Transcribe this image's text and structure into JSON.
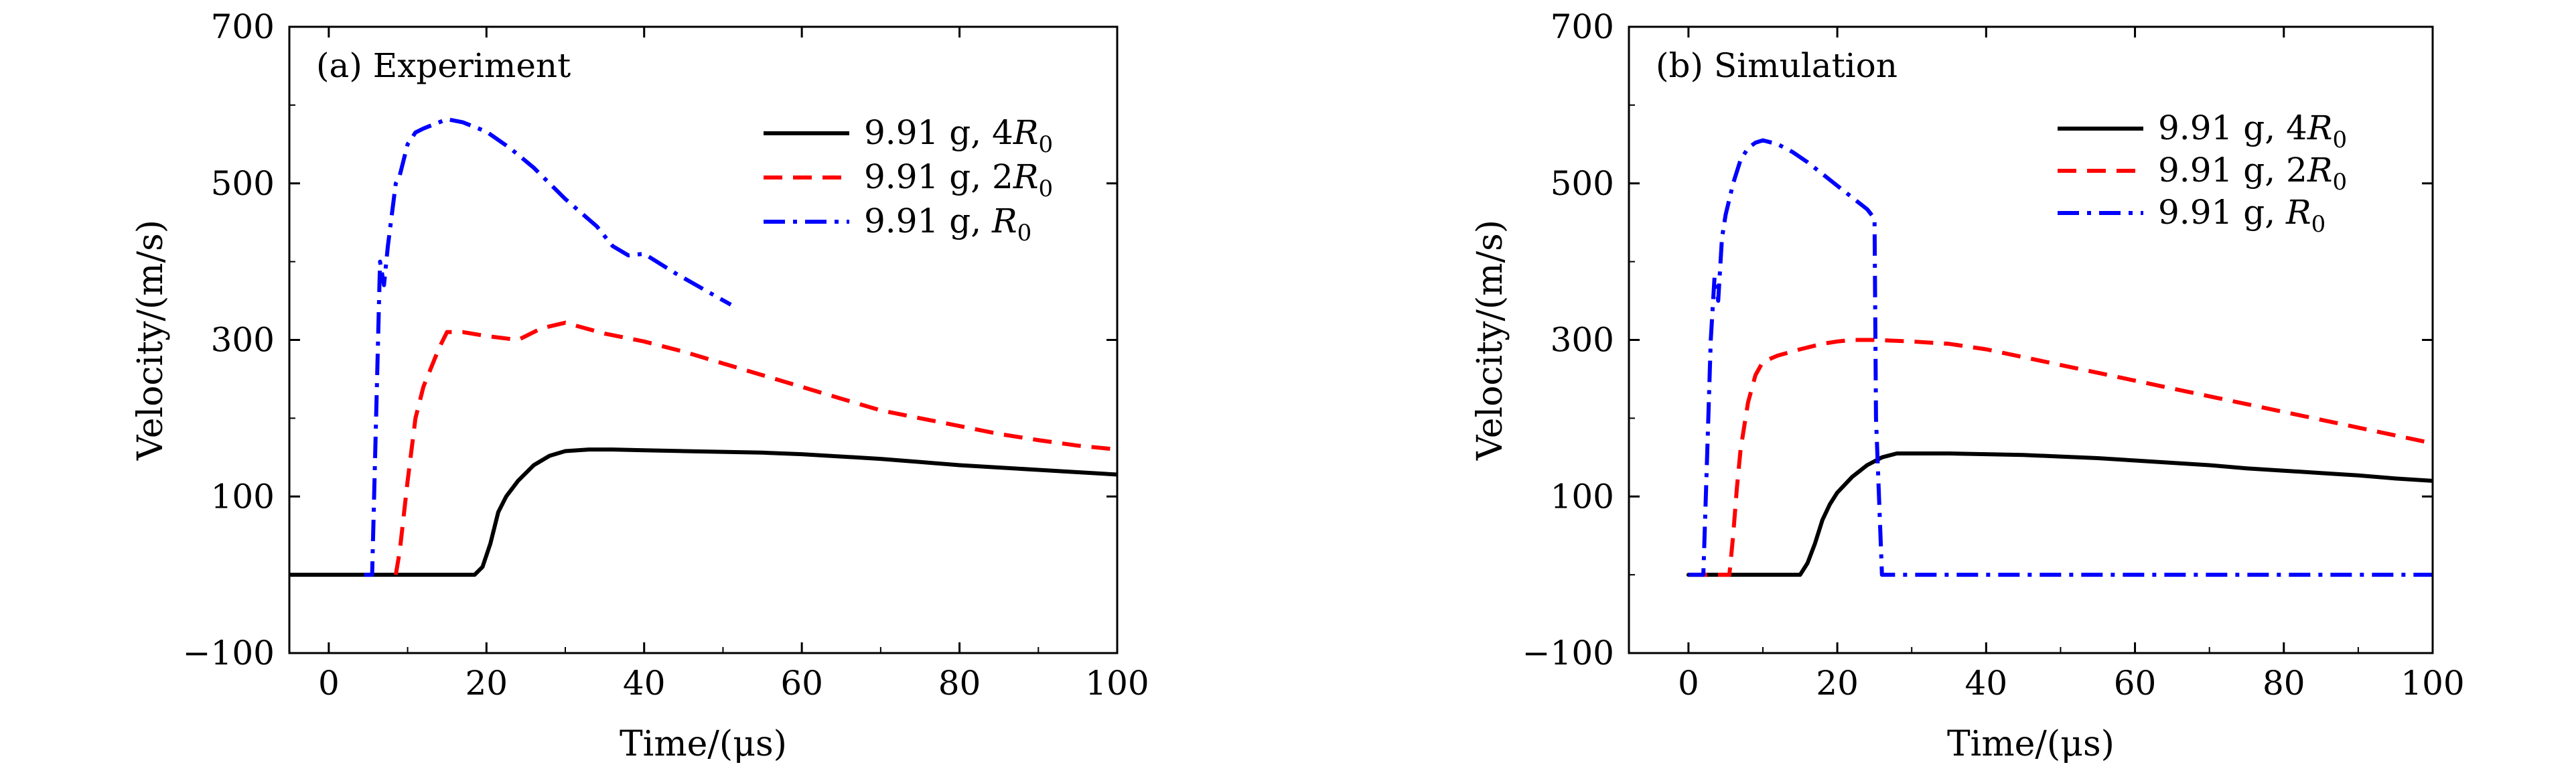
{
  "chart_data": [
    {
      "type": "line",
      "panel": "(a) Experiment",
      "xlabel": "Time/(μs)",
      "ylabel": "Velocity/(m/s)",
      "xlim": [
        -5,
        100
      ],
      "ylim": [
        -100,
        700
      ],
      "xticks": [
        0,
        20,
        40,
        60,
        80,
        100
      ],
      "yticks": [
        -100,
        100,
        300,
        500,
        700
      ],
      "legend_position": "top-right",
      "series": [
        {
          "name": "9.91 g, 4R0",
          "name_main": "9.91 g, 4",
          "name_italic": "R",
          "name_sub": "0",
          "color": "#000000",
          "style": "solid",
          "x": [
            -5,
            18.5,
            19.5,
            20.5,
            21.5,
            22.5,
            24,
            26,
            28,
            30,
            33,
            36,
            40,
            45,
            50,
            55,
            60,
            65,
            70,
            75,
            80,
            85,
            90,
            95,
            100
          ],
          "y": [
            0,
            0,
            10,
            40,
            80,
            100,
            120,
            140,
            152,
            158,
            160,
            160,
            159,
            158,
            157,
            156,
            154,
            151,
            148,
            144,
            140,
            137,
            134,
            131,
            128
          ]
        },
        {
          "name": "9.91 g, 2R0",
          "name_main": "9.91 g, 2",
          "name_italic": "R",
          "name_sub": "0",
          "color": "#ff0000",
          "style": "dashed",
          "x": [
            8.5,
            9,
            10,
            11,
            12,
            13,
            14,
            15,
            17,
            20,
            24,
            27,
            30,
            35,
            40,
            45,
            50,
            55,
            60,
            65,
            70,
            75,
            80,
            85,
            90,
            95,
            100
          ],
          "y": [
            0,
            30,
            120,
            200,
            240,
            265,
            290,
            310,
            310,
            305,
            300,
            315,
            322,
            308,
            298,
            285,
            270,
            255,
            240,
            225,
            210,
            200,
            190,
            180,
            172,
            165,
            160
          ]
        },
        {
          "name": "9.91 g, R0",
          "name_main": "9.91 g, ",
          "name_italic": "R",
          "name_sub": "0",
          "color": "#0000ff",
          "style": "dashdot",
          "x": [
            4.5,
            5.5,
            6,
            6.5,
            7,
            7.5,
            8,
            8.5,
            9,
            10,
            11,
            12,
            14,
            15,
            17,
            20,
            23,
            26,
            30,
            34,
            36,
            38,
            40,
            44,
            48,
            51
          ],
          "y": [
            0,
            0,
            200,
            400,
            370,
            420,
            460,
            500,
            510,
            550,
            565,
            570,
            578,
            582,
            578,
            566,
            545,
            520,
            480,
            445,
            420,
            408,
            410,
            385,
            362,
            345
          ]
        }
      ]
    },
    {
      "type": "line",
      "panel": "(b) Simulation",
      "xlabel": "Time/(μs)",
      "ylabel": "Velocity/(m/s)",
      "xlim": [
        -8,
        100
      ],
      "ylim": [
        -100,
        700
      ],
      "xticks": [
        0,
        20,
        40,
        60,
        80,
        100
      ],
      "yticks": [
        -100,
        100,
        300,
        500,
        700
      ],
      "legend_position": "top-right",
      "series": [
        {
          "name": "9.91 g, 4R0",
          "name_main": "9.91 g, 4",
          "name_italic": "R",
          "name_sub": "0",
          "color": "#000000",
          "style": "solid",
          "x": [
            0,
            15,
            16,
            17,
            18,
            19,
            20,
            22,
            24,
            26,
            28,
            30,
            35,
            40,
            45,
            50,
            55,
            60,
            65,
            70,
            75,
            80,
            85,
            90,
            95,
            100
          ],
          "y": [
            0,
            0,
            15,
            40,
            70,
            90,
            105,
            125,
            140,
            150,
            155,
            155,
            155,
            154,
            153,
            151,
            149,
            146,
            143,
            140,
            136,
            133,
            130,
            127,
            123,
            120
          ]
        },
        {
          "name": "9.91 g, 2R0",
          "name_main": "9.91 g, 2",
          "name_italic": "R",
          "name_sub": "0",
          "color": "#ff0000",
          "style": "dashed",
          "x": [
            0,
            5.5,
            6,
            6.5,
            7,
            8,
            9,
            10,
            12,
            15,
            18,
            20,
            22,
            25,
            30,
            35,
            40,
            45,
            50,
            55,
            60,
            65,
            70,
            75,
            80,
            85,
            90,
            95,
            100
          ],
          "y": [
            0,
            0,
            50,
            110,
            160,
            220,
            255,
            272,
            280,
            288,
            295,
            298,
            300,
            300,
            298,
            295,
            288,
            278,
            268,
            258,
            248,
            238,
            228,
            218,
            208,
            198,
            188,
            178,
            168
          ]
        },
        {
          "name": "9.91 g, R0",
          "name_main": "9.91 g, ",
          "name_italic": "R",
          "name_sub": "0",
          "color": "#0000ff",
          "style": "dashdot",
          "x": [
            0,
            2,
            2.5,
            3,
            3.5,
            4,
            4.5,
            5,
            6,
            7,
            8,
            9,
            10,
            12,
            14,
            16,
            18,
            20,
            22,
            24,
            25,
            25.2,
            26,
            30,
            40,
            50,
            60,
            70,
            80,
            90,
            100
          ],
          "y": [
            0,
            0,
            150,
            300,
            380,
            350,
            430,
            460,
            500,
            530,
            545,
            552,
            555,
            550,
            540,
            527,
            512,
            497,
            482,
            467,
            455,
            200,
            0,
            0,
            0,
            0,
            0,
            0,
            0,
            0,
            0
          ]
        }
      ]
    }
  ]
}
